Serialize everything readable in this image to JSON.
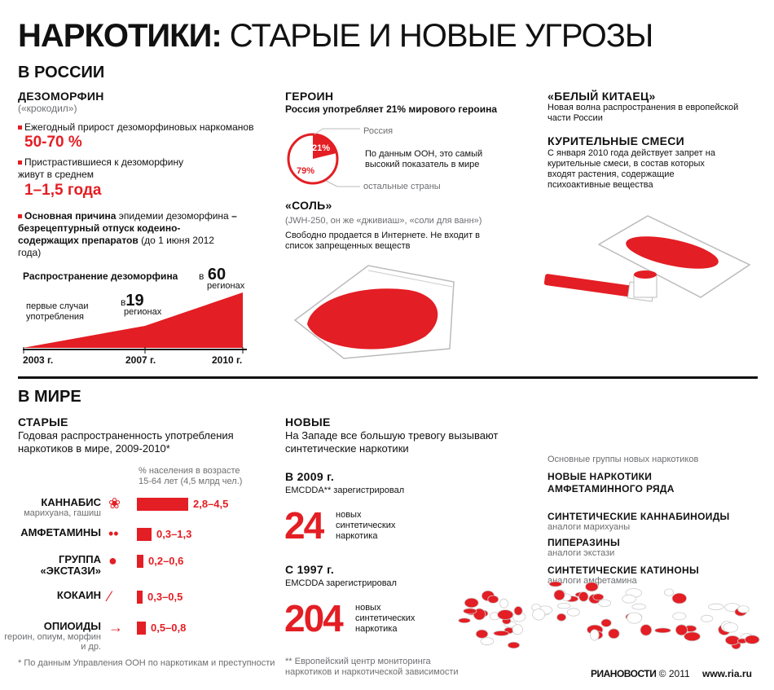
{
  "title": {
    "bold": "НАРКОТИКИ:",
    "light": " СТАРЫЕ И НОВЫЕ УГРОЗЫ"
  },
  "russia": {
    "heading": "В РОССИИ",
    "desomorphine": {
      "title": "ДЕЗОМОРФИН",
      "subtitle": "(«крокодил»)",
      "growth_label": "Ежегодный прирост дезоморфиновых наркоманов",
      "growth_value": "50-70 %",
      "life_label": "Пристрастившиеся к дезоморфину живут в среднем",
      "life_value": "1–1,5 года",
      "cause_bold": "Основная причина",
      "cause_text": " эпидемии дезоморфина",
      "cause_bold2": "– безрецептурный отпуск кодеино-содержащих препаратов",
      "cause_note": "(до 1 июня 2012 года)",
      "spread_title": "Распространение дезоморфина",
      "first_cases": "первые случаи употребления",
      "b19_prefix": "в",
      "b19_num": "19",
      "b19_suffix": "регионах",
      "b60_prefix": "в",
      "b60_num": "60",
      "b60_suffix": "регионах",
      "years": [
        "2003 г.",
        "2007 г.",
        "2010 г."
      ]
    },
    "heroin": {
      "title": "ГЕРОИН",
      "subtitle": "Россия употребляет 21% мирового героина",
      "russia_label": "Россия",
      "pct_russia": "21%",
      "pct_other": "79%",
      "note": "По данным ООН, это самый высокий показатель в мире",
      "other_label": "остальные страны"
    },
    "salt": {
      "title": "«СОЛЬ»",
      "subtitle": "(JWH-250, он же «дживиаш», «соли для ванн»)",
      "text": "Свободно продается в Интернете. Не входит в список запрещенных веществ"
    },
    "white_chinese": {
      "title": "«БЕЛЫЙ КИТАЕЦ»",
      "text": "Новая волна распространения в европейской части России"
    },
    "smoking_mixes": {
      "title": "КУРИТЕЛЬНЫЕ СМЕСИ",
      "text": "С января 2010 года действует запрет на курительные смеси, в состав которых входят растения, содержащие психоактивные вещества"
    }
  },
  "world": {
    "heading": "В МИРЕ",
    "old": {
      "title": "СТАРЫЕ",
      "subtitle": "Годовая распространенность употребления наркотиков в мире, 2009-2010*",
      "axis_note": "% населения в возрасте 15-64 лет (4,5 млрд чел.)",
      "footnote": "* По данным Управления ООН по наркотикам и преступности"
    },
    "new": {
      "title": "НОВЫЕ",
      "subtitle": "На Западе все большую тревогу вызывают синтетические наркотики",
      "y2009": "В 2009 г.",
      "reg1": "EMCDDA** зарегистрировал",
      "n1": "24",
      "n1_text": "новых синтетических наркотика",
      "y1997": "С 1997 г.",
      "reg2": "EMCDDA зарегистрировал",
      "n2": "204",
      "n2_text": "новых синтетических наркотика",
      "footnote": "** Европейский центр мониторинга наркотиков и наркотической зависимости",
      "groups_title": "Основные группы новых наркотиков",
      "groups": [
        {
          "name": "НОВЫЕ НАРКОТИКИ АМФЕТАМИННОГО РЯДА",
          "sub": ""
        },
        {
          "name": "СИНТЕТИЧЕСКИЕ КАННАБИНОИДЫ",
          "sub": "аналоги марихуаны"
        },
        {
          "name": "ПИПЕРАЗИНЫ",
          "sub": "аналоги экстази"
        },
        {
          "name": "СИНТЕТИЧЕСКИЕ КАТИНОНЫ",
          "sub": "аналоги амфетамина"
        }
      ]
    }
  },
  "chart_data": {
    "type": "bar",
    "categories": [
      "КАННАБИС",
      "АМФЕТАМИНЫ",
      "ГРУППА «ЭКСТАЗИ»",
      "КОКАИН",
      "ОПИОИДЫ"
    ],
    "subcategories": [
      "марихуана, гашиш",
      "",
      "",
      "",
      "героин, опиум, морфин и др."
    ],
    "labels": [
      "2,8–4,5",
      "0,3–1,3",
      "0,2–0,6",
      "0,3–0,5",
      "0,5–0,8"
    ],
    "values": [
      4.5,
      1.3,
      0.6,
      0.5,
      0.8
    ],
    "ylabel": "% населения в возрасте 15-64 лет (4,5 млрд чел.)"
  },
  "footer": {
    "brand": "РИАНОВОСТИ",
    "copy": "© 2011",
    "site": "www.ria.ru"
  },
  "colors": {
    "accent": "#e31e24",
    "text": "#111111",
    "gray": "#6d6e71"
  }
}
